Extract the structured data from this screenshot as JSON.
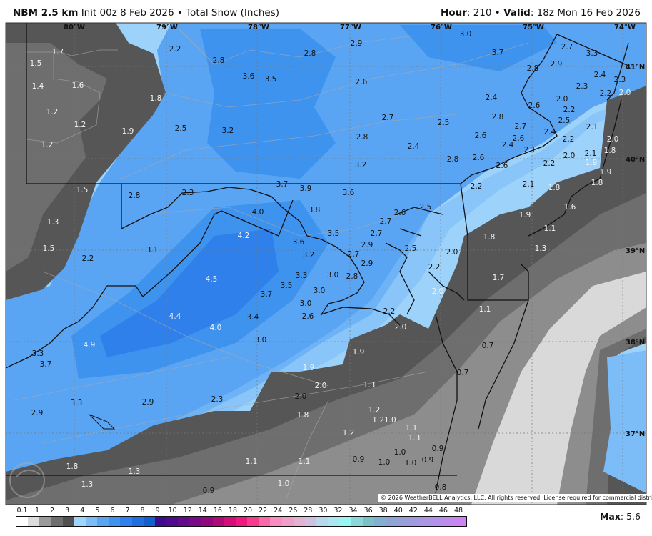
{
  "header": {
    "model": "NBM 2.5 km",
    "init": "Init 00z 8 Feb 2026",
    "sep": "•",
    "product": "Total Snow (Inches)",
    "hour_label": "Hour",
    "hour": "210",
    "valid_label": "Valid",
    "valid": "18z Mon 16 Feb 2026"
  },
  "map": {
    "lon_labels": [
      "80°W",
      "79°W",
      "78°W",
      "77°W",
      "76°W",
      "75°W",
      "74°W"
    ],
    "lat_labels": [
      "41°N",
      "40°N",
      "39°N",
      "38°N",
      "37°N"
    ],
    "snow_labels": [
      "1.7",
      "1.5",
      "1.4",
      "1.6",
      "1.2",
      "1.2",
      "1.2",
      "1.8",
      "1.9",
      "2.2",
      "2.5",
      "2.8",
      "3.6",
      "3.5",
      "3.2",
      "2.8",
      "2.9",
      "2.6",
      "2.7",
      "2.8",
      "2.4",
      "3.2",
      "3.0",
      "3.7",
      "2.7",
      "3.3",
      "2.8",
      "2.9",
      "2.4",
      "2.3",
      "2.3",
      "2.2",
      "2.0",
      "2.4",
      "2.0",
      "2.2",
      "2.6",
      "2.8",
      "2.5",
      "2.5",
      "2.1",
      "2.7",
      "2.6",
      "2.6",
      "2.4",
      "2.2",
      "2.0",
      "2.4",
      "2.8",
      "2.6",
      "2.1",
      "2.0",
      "2.1",
      "1.8",
      "2.6",
      "2.2",
      "1.9",
      "1.9",
      "1.8",
      "1.5",
      "2.8",
      "2.3",
      "3.7",
      "3.9",
      "3.6",
      "4.0",
      "3.8",
      "1.3",
      "3.5",
      "4.2",
      "2.7",
      "2.7",
      "2.9",
      "2.6",
      "2.5",
      "2.2",
      "2.1",
      "1.8",
      "1.9",
      "1.6",
      "1.1",
      "1.8",
      "1.3",
      "3.1",
      "1.5",
      "2.2",
      "3.6",
      "2.7",
      "2.5",
      "2.0",
      "3.2",
      "2.9",
      "2.8",
      "3.0",
      "3.3",
      "2.2",
      "4.5",
      "1.7",
      "3.7",
      "3.5",
      "2.0",
      "3.0",
      "3.0",
      "1.1",
      "4.4",
      "2.6",
      "3.4",
      "2.2",
      "2.0",
      "4.0",
      "3.0",
      "0.7",
      "4.9",
      "1.9",
      "3.3",
      "3.7",
      "1.9",
      "0.7",
      "1.3",
      "2.0",
      "2.0",
      "2.3",
      "1.2",
      "1.21.0",
      "1.1",
      "2.9",
      "3.3",
      "2.9",
      "1.8",
      "1.2",
      "1.3",
      "1.0",
      "0.9",
      "0.9",
      "1.0",
      "1.0",
      "0.9",
      "1.8",
      "1.3",
      "1.1",
      "1.1",
      "1.3",
      "1.0",
      "0.9",
      "0.8"
    ],
    "logo_text": "WeatherBELL",
    "copyright": "© 2026 WeatherBELL Analytics, LLC. All rights reserved. License required for commercial distribution.",
    "colors": {
      "land_gray_dark": "#565656",
      "gray_mid": "#6e6e6e",
      "gray_light": "#8d8d8d",
      "gray_pale": "#d9d9d9",
      "blue_light": "#9dd3fa",
      "blue_mid": "#5aa5f3",
      "blue_dark": "#2f80ea",
      "blue_deep": "#1f6fe0"
    }
  },
  "colorbar": {
    "tick_labels": [
      "0.1",
      "1",
      "2",
      "3",
      "4",
      "5",
      "6",
      "7",
      "8",
      "9",
      "10",
      "12",
      "14",
      "16",
      "18",
      "20",
      "22",
      "24",
      "26",
      "28",
      "30",
      "32",
      "34",
      "36",
      "38",
      "40",
      "42",
      "44",
      "46",
      "48"
    ],
    "colors": [
      "#ffffff",
      "#dcdcdc",
      "#9a9a9a",
      "#6e6e6e",
      "#505050",
      "#9fd4fb",
      "#7cbcf7",
      "#5aa5f3",
      "#3e93ef",
      "#2f80ea",
      "#1f6fe0",
      "#145fd0",
      "#3d0d8f",
      "#4d0c8e",
      "#640b8c",
      "#7a0a88",
      "#92097f",
      "#b00a78",
      "#d50d78",
      "#f0187f",
      "#f53c8e",
      "#fa6aa8",
      "#fb8cc0",
      "#f0a0c8",
      "#e2b2d2",
      "#cfc0e0",
      "#b8d8ee",
      "#aae6f4",
      "#98f6f3",
      "#8ad8d8",
      "#7ec0c8",
      "#82b0d0",
      "#8ea4d6",
      "#98a0da",
      "#a09ae0",
      "#aa96e4",
      "#b490ea",
      "#c08aef",
      "#cc84f4"
    ],
    "max_label": "Max",
    "max_value": "5.6"
  }
}
